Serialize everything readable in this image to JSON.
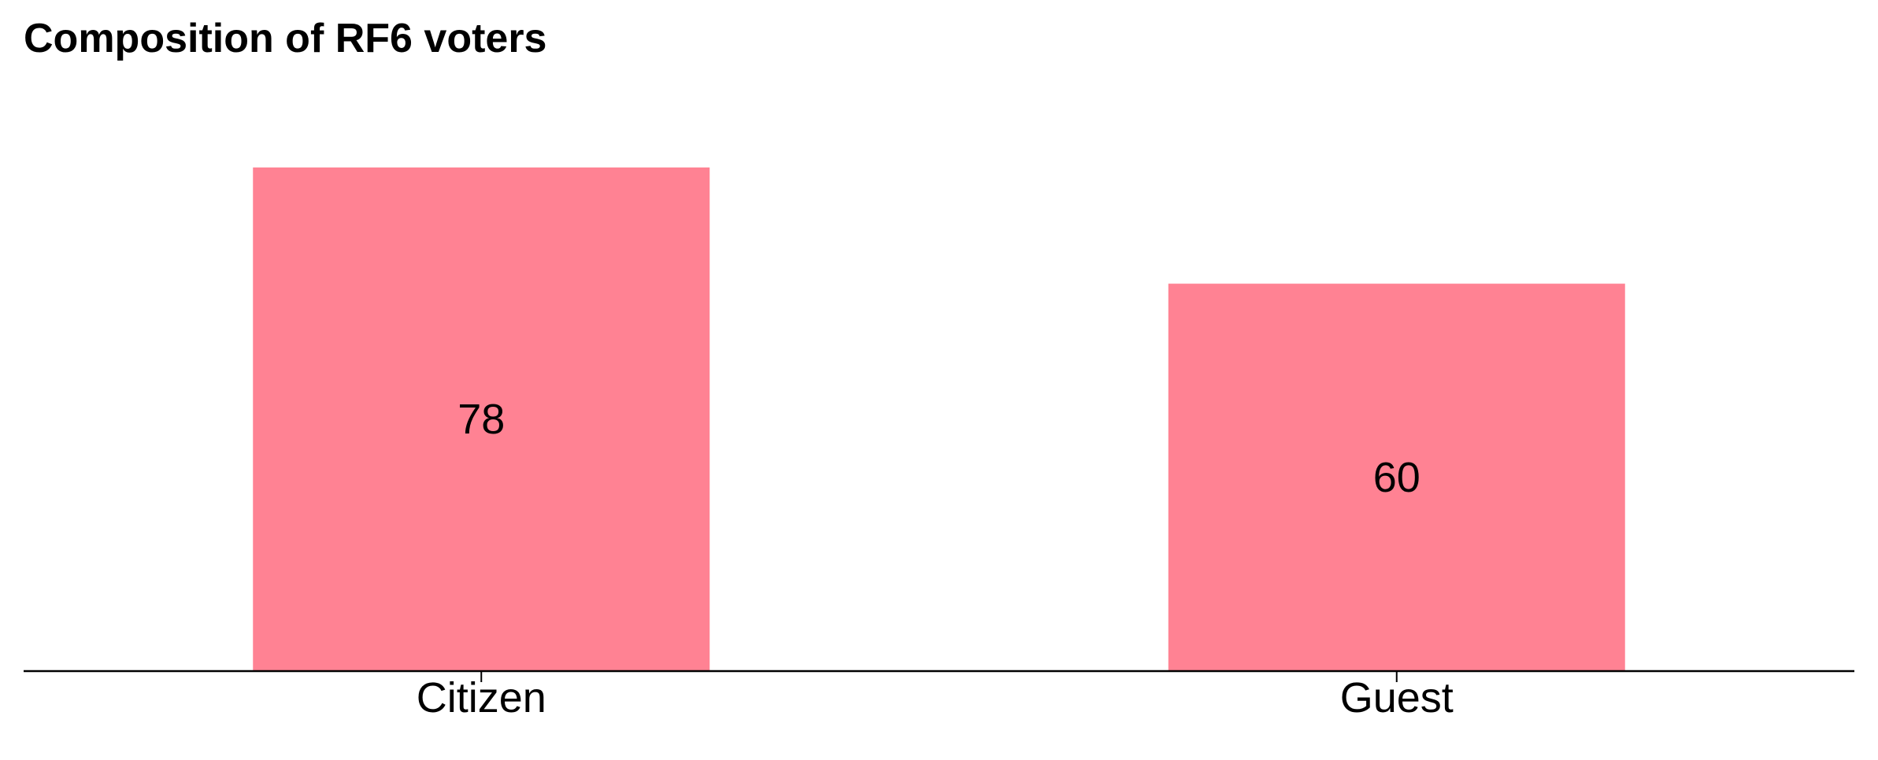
{
  "chart_data": {
    "type": "bar",
    "title": "Composition of RF6 voters",
    "categories": [
      "Citizen",
      "Guest"
    ],
    "values": [
      78,
      60
    ],
    "xlabel": "",
    "ylabel": "",
    "ylim": [
      0,
      82
    ],
    "grid": false,
    "y_axis_visible": false,
    "data_labels": "center",
    "colors": {
      "bar": "#ff8293",
      "axis": "#000000",
      "text": "#000000"
    }
  }
}
